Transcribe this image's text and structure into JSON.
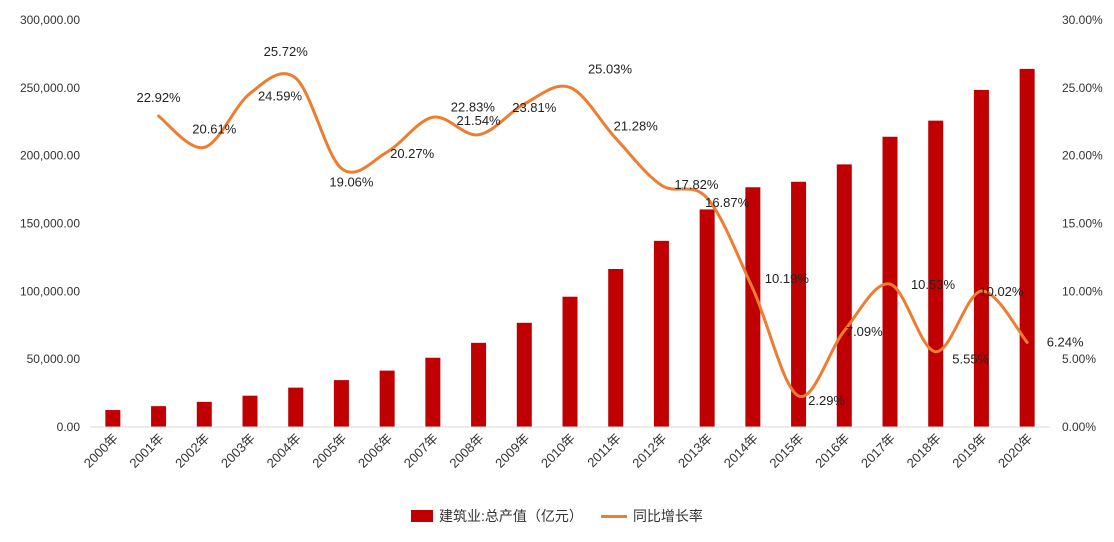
{
  "chart_data": {
    "type": "bar+line",
    "categories": [
      "2000年",
      "2001年",
      "2002年",
      "2003年",
      "2004年",
      "2005年",
      "2006年",
      "2007年",
      "2008年",
      "2009年",
      "2010年",
      "2011年",
      "2012年",
      "2013年",
      "2014年",
      "2015年",
      "2016年",
      "2017年",
      "2018年",
      "2019年",
      "2020年"
    ],
    "series": [
      {
        "name": "建筑业:总产值（亿元）",
        "type": "bar",
        "axis": "left",
        "color": "#C00000",
        "values": [
          12498,
          15362,
          18527,
          23084,
          29021,
          34552,
          41557,
          51044,
          62037,
          76808,
          96031,
          116463,
          137218,
          160366,
          176713,
          180757,
          193567,
          213944,
          225817,
          248446,
          263947
        ]
      },
      {
        "name": "同比增长率",
        "type": "line",
        "axis": "right",
        "color": "#ED7D31",
        "values": [
          null,
          22.92,
          20.61,
          24.59,
          25.72,
          19.06,
          20.27,
          22.83,
          21.54,
          23.81,
          25.03,
          21.28,
          17.82,
          16.87,
          10.19,
          2.29,
          7.09,
          10.53,
          5.55,
          10.02,
          6.24
        ],
        "labels": [
          "",
          "22.92%",
          "20.61%",
          "24.59%",
          "25.72%",
          "19.06%",
          "20.27%",
          "22.83%",
          "21.54%",
          "23.81%",
          "25.03%",
          "21.28%",
          "17.82%",
          "16.87%",
          "10.19%",
          "2.29%",
          "7.09%",
          "10.53%",
          "5.55%",
          "10.02%",
          "6.24%"
        ]
      }
    ],
    "y_left": {
      "min": 0,
      "max": 300000,
      "step": 50000,
      "tick_labels": [
        "0.00",
        "50,000.00",
        "100,000.00",
        "150,000.00",
        "200,000.00",
        "250,000.00",
        "300,000.00"
      ]
    },
    "y_right": {
      "min": 0,
      "max": 30,
      "step": 5,
      "tick_labels": [
        "0.00%",
        "5.00%",
        "10.00%",
        "15.00%",
        "20.00%",
        "25.00%",
        "30.00%"
      ]
    },
    "grid": false,
    "legend_position": "bottom"
  },
  "legend": {
    "bar_label": "建筑业:总产值（亿元）",
    "line_label": "同比增长率"
  }
}
